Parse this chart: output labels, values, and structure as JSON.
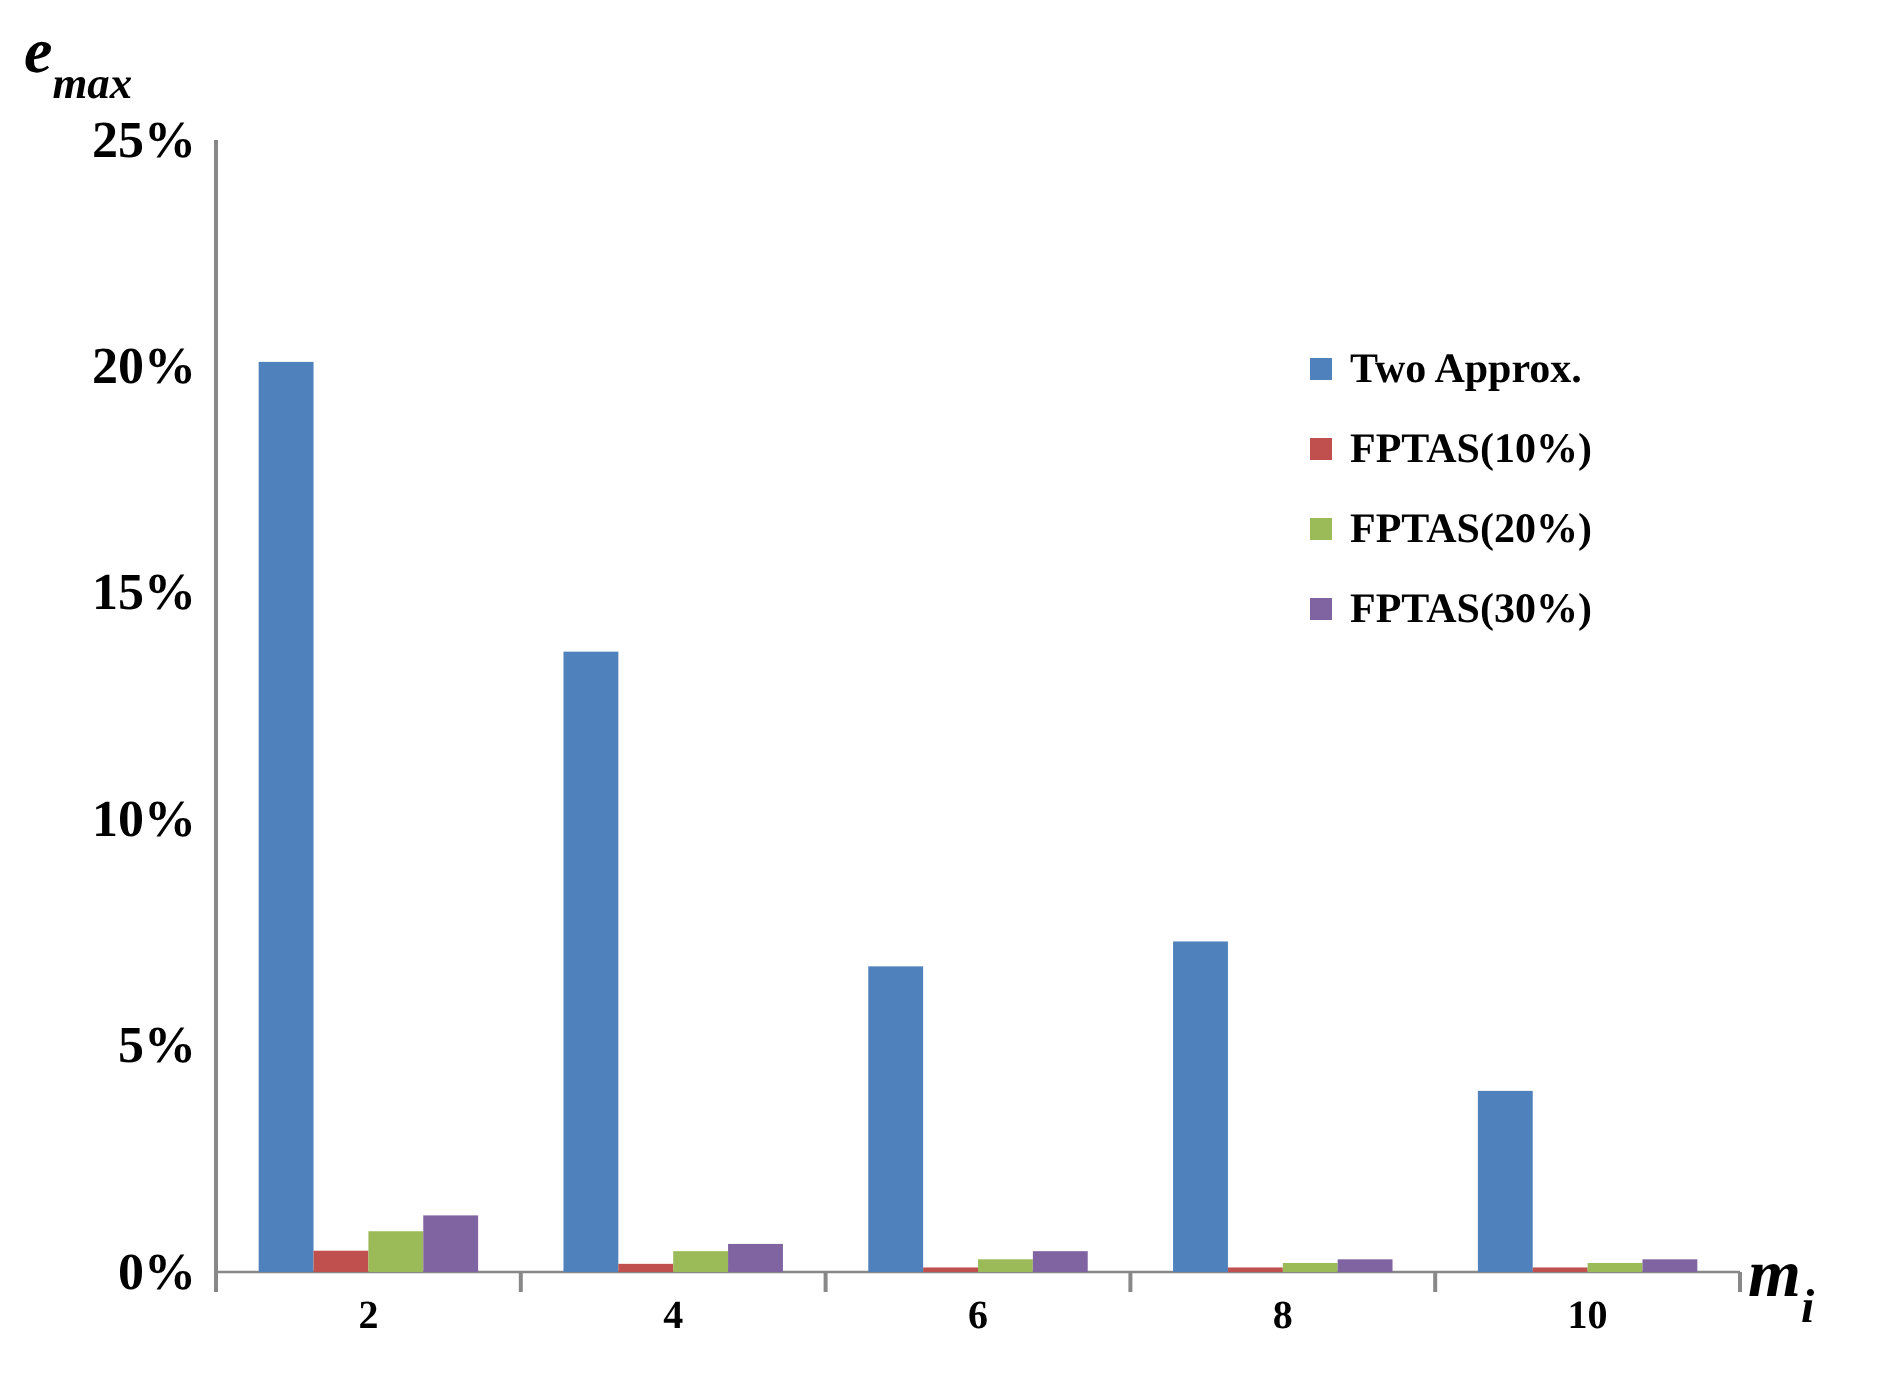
{
  "chart_data": {
    "type": "bar",
    "xlabel": "m$_{i}$",
    "ylabel": "e$_{max}$",
    "categories": [
      "2",
      "4",
      "6",
      "8",
      "10"
    ],
    "series": [
      {
        "name": "Two Approx.",
        "color": "#4f81bd",
        "values": [
          20.1,
          13.7,
          6.75,
          7.3,
          4.0
        ]
      },
      {
        "name": "FPTAS(10%)",
        "color": "#c0504d",
        "values": [
          0.47,
          0.18,
          0.1,
          0.1,
          0.1
        ]
      },
      {
        "name": "FPTAS(20%)",
        "color": "#9bbb59",
        "values": [
          0.9,
          0.46,
          0.28,
          0.2,
          0.2
        ]
      },
      {
        "name": "FPTAS(30%)",
        "color": "#8064a2",
        "values": [
          1.25,
          0.62,
          0.46,
          0.28,
          0.28
        ]
      }
    ],
    "ylim": [
      0,
      25
    ],
    "yticks": [
      {
        "value": 0,
        "label": "0%"
      },
      {
        "value": 5,
        "label": "5%"
      },
      {
        "value": 10,
        "label": "10%"
      },
      {
        "value": 15,
        "label": "15%"
      },
      {
        "value": 20,
        "label": "20%"
      },
      {
        "value": 25,
        "label": "25%"
      }
    ],
    "grid": false,
    "legend": "top right"
  }
}
